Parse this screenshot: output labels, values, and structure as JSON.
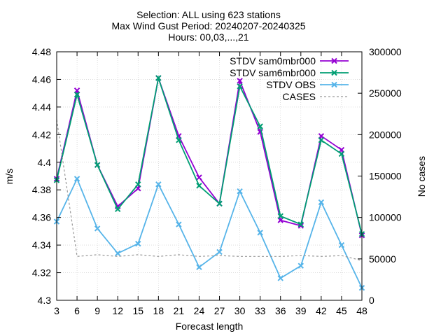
{
  "chart_data": {
    "type": "line",
    "title_lines": [
      "Selection: ALL using   623 stations",
      "Max Wind Gust   Period: 20240207-20240325",
      "Hours: 00,03,...,21"
    ],
    "xlabel": "Forecast length",
    "ylabel": "m/s",
    "y2label": "No cases",
    "x": [
      3,
      6,
      9,
      12,
      15,
      18,
      21,
      24,
      27,
      30,
      33,
      36,
      39,
      42,
      45,
      48
    ],
    "xlim": [
      3,
      48
    ],
    "ylim": [
      4.3,
      4.48
    ],
    "y2lim": [
      0,
      300000
    ],
    "yticks": [
      "4.3",
      "4.32",
      "4.34",
      "4.36",
      "4.38",
      "4.4",
      "4.42",
      "4.44",
      "4.46",
      "4.48"
    ],
    "y2ticks": [
      "0",
      "50000",
      "100000",
      "150000",
      "200000",
      "250000",
      "300000"
    ],
    "grid": true,
    "legend_position": "top-right",
    "series": [
      {
        "name": "STDV sam0mbr000",
        "axis": "y",
        "color": "#9400d3",
        "marker": "x",
        "values": [
          4.388,
          4.452,
          4.398,
          4.368,
          4.381,
          4.461,
          4.419,
          4.389,
          4.37,
          4.459,
          4.422,
          4.358,
          4.354,
          4.419,
          4.409,
          4.347
        ]
      },
      {
        "name": "STDV sam6mbr000",
        "axis": "y",
        "color": "#009e73",
        "marker": "x",
        "values": [
          4.387,
          4.449,
          4.398,
          4.366,
          4.384,
          4.461,
          4.416,
          4.383,
          4.37,
          4.455,
          4.426,
          4.361,
          4.355,
          4.416,
          4.406,
          4.348
        ]
      },
      {
        "name": "STDV OBS",
        "axis": "y",
        "color": "#56b4e9",
        "marker": "x",
        "values": [
          4.357,
          4.388,
          4.352,
          4.334,
          4.341,
          4.384,
          4.355,
          4.324,
          4.335,
          4.379,
          4.349,
          4.316,
          4.325,
          4.371,
          4.34,
          4.309
        ]
      },
      {
        "name": "CASES",
        "axis": "y2",
        "color": "#999999",
        "dashed": true,
        "values": [
          218000,
          53000,
          55000,
          53000,
          55000,
          53000,
          55000,
          53000,
          54000,
          53000,
          53000,
          53000,
          54000,
          53000,
          54000,
          48000
        ]
      }
    ]
  }
}
